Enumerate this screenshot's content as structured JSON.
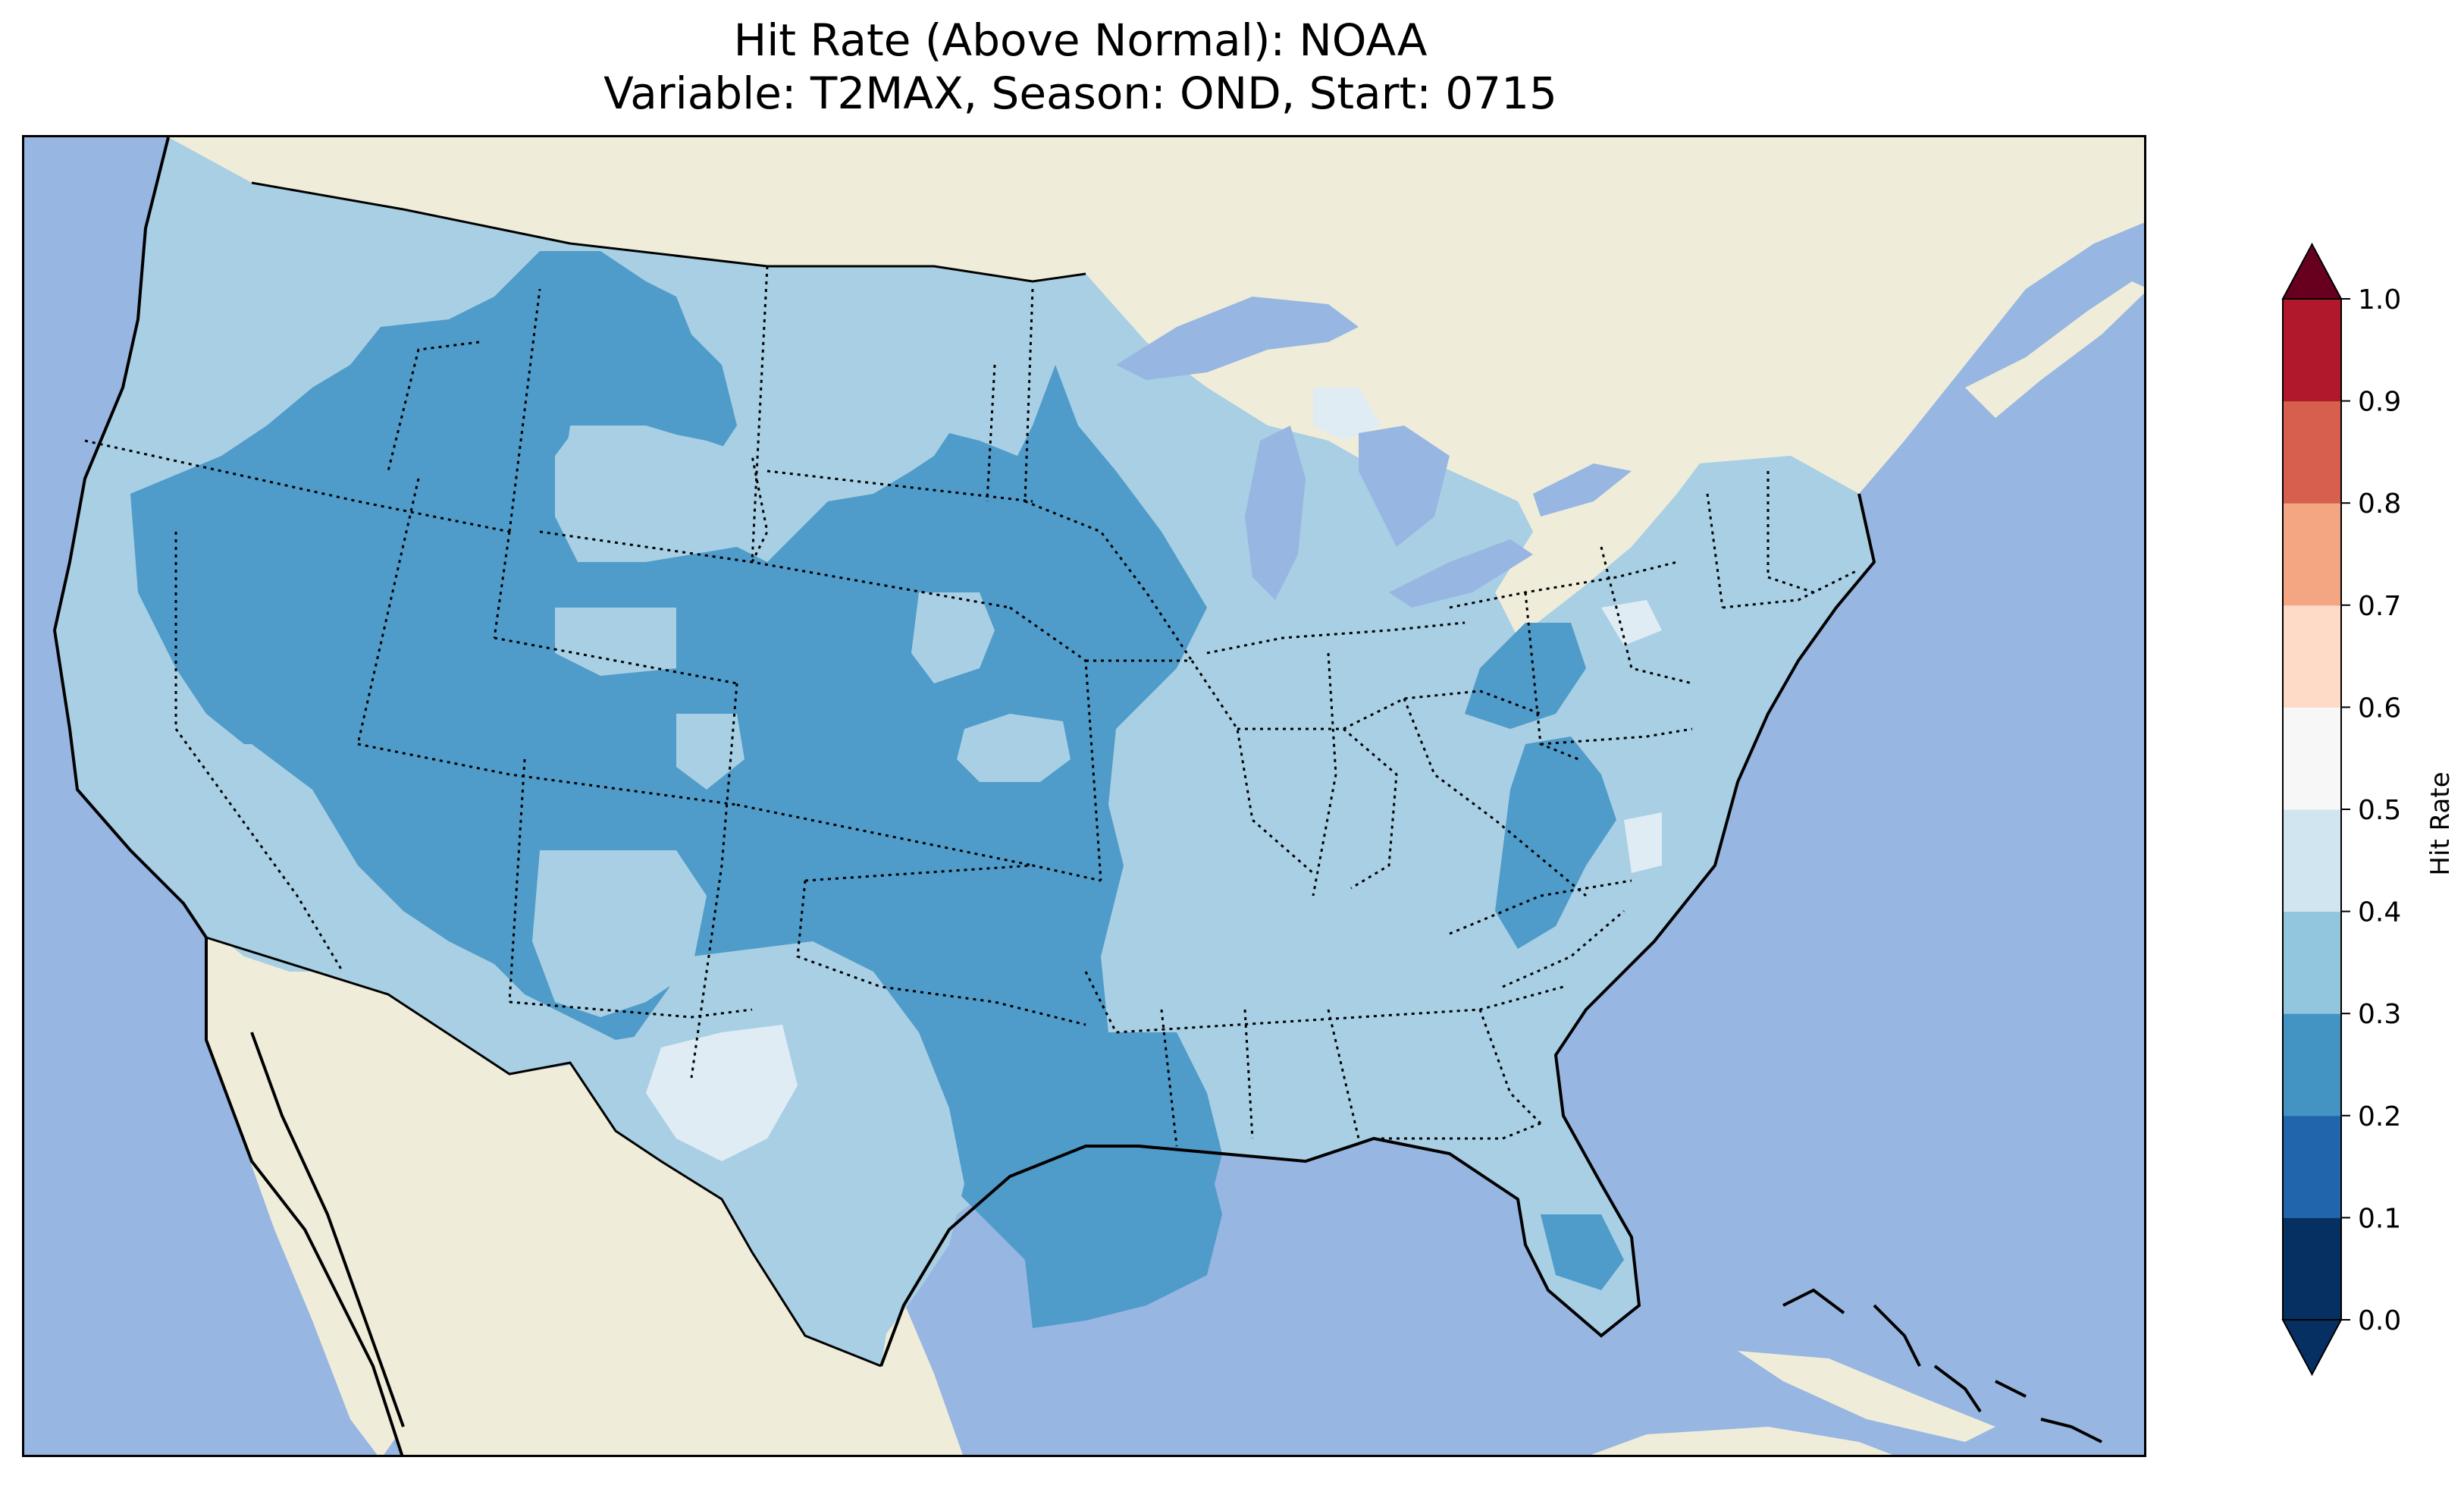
{
  "title": {
    "line1": "Hit Rate (Above Normal): NOAA",
    "line2": "Variable: T2MAX, Season: OND, Start: 0715"
  },
  "colors": {
    "ocean": "#97b6e1",
    "land": "#efedda",
    "lakes": "#97b6e1"
  },
  "map": {
    "region": "CONUS",
    "field_classes": [
      {
        "range": "0.2-0.3",
        "color": "#4f9bc9"
      },
      {
        "range": "0.3-0.4",
        "color": "#a8cfe4"
      },
      {
        "range": "0.4-0.5",
        "color": "#e0ecf4"
      }
    ]
  },
  "colorbar": {
    "label": "Hit Rate",
    "ticks": [
      "0.0",
      "0.1",
      "0.2",
      "0.3",
      "0.4",
      "0.5",
      "0.6",
      "0.7",
      "0.8",
      "0.9",
      "1.0"
    ],
    "colors": [
      "#053061",
      "#2166ac",
      "#4393c3",
      "#92c5de",
      "#d1e5f0",
      "#f7f7f7",
      "#fddbc7",
      "#f4a582",
      "#d6604d",
      "#b2182b"
    ],
    "under_color": "#053061",
    "over_color": "#67001f"
  }
}
